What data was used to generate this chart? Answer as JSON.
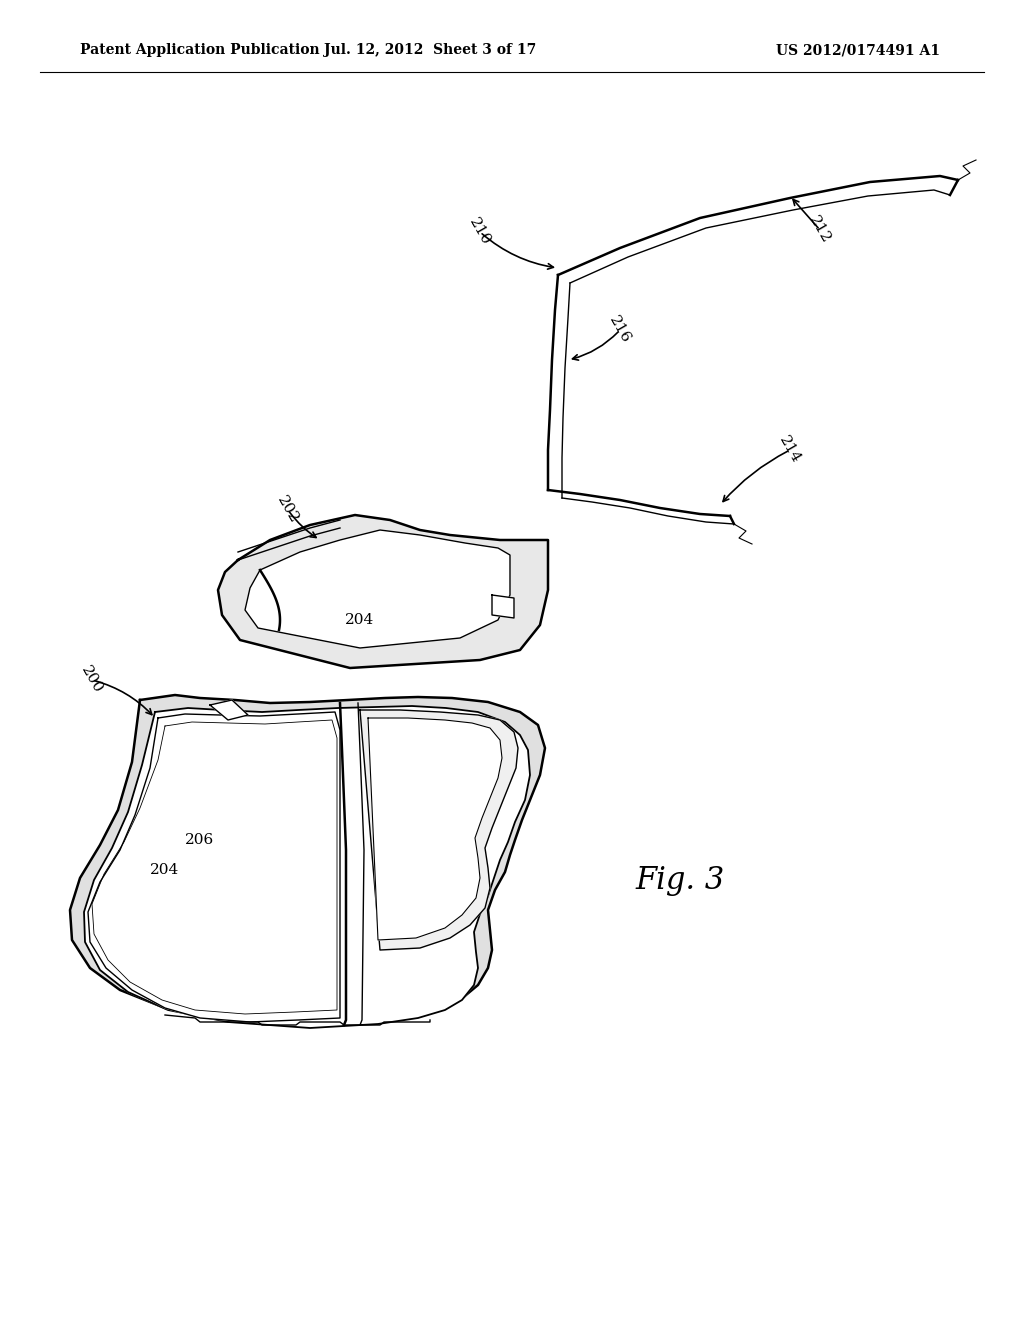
{
  "background_color": "#ffffff",
  "header_left": "Patent Application Publication",
  "header_center": "Jul. 12, 2012  Sheet 3 of 17",
  "header_right": "US 2012/0174491 A1",
  "header_fontsize": 10,
  "fig_label": "Fig. 3",
  "fig_label_fontsize": 22
}
